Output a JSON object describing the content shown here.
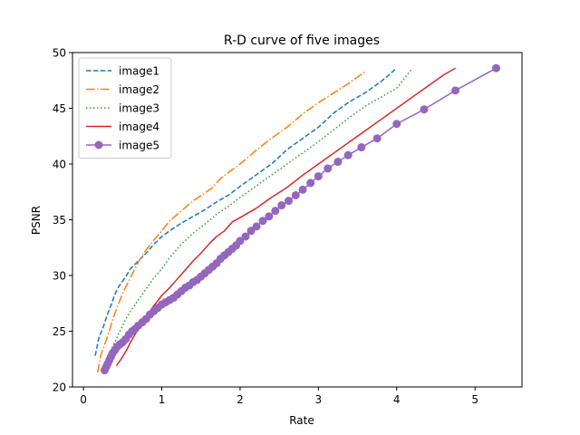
{
  "chart_data": {
    "type": "line",
    "title": "R-D curve of five images",
    "xlabel": "Rate",
    "ylabel": "PSNR",
    "xlim": [
      -0.14,
      5.6
    ],
    "ylim": [
      20,
      50
    ],
    "xticks": [
      0,
      1,
      2,
      3,
      4,
      5
    ],
    "yticks": [
      20,
      25,
      30,
      35,
      40,
      45,
      50
    ],
    "grid": false,
    "legend_position": "top-left",
    "series": [
      {
        "name": "image1",
        "color": "#1f77b4",
        "style": "dashed",
        "marker": "none",
        "points": [
          [
            0.15,
            22.8
          ],
          [
            0.2,
            24.5
          ],
          [
            0.25,
            25.3
          ],
          [
            0.3,
            26.4
          ],
          [
            0.35,
            27.3
          ],
          [
            0.4,
            28.3
          ],
          [
            0.45,
            29.0
          ],
          [
            0.5,
            29.5
          ],
          [
            0.55,
            30.0
          ],
          [
            0.6,
            30.6
          ],
          [
            0.7,
            31.3
          ],
          [
            0.8,
            32.0
          ],
          [
            0.9,
            32.8
          ],
          [
            1.0,
            33.5
          ],
          [
            1.1,
            34.0
          ],
          [
            1.25,
            34.7
          ],
          [
            1.4,
            35.3
          ],
          [
            1.55,
            35.9
          ],
          [
            1.7,
            36.6
          ],
          [
            1.85,
            37.2
          ],
          [
            2.0,
            38.0
          ],
          [
            2.2,
            39.0
          ],
          [
            2.4,
            40.0
          ],
          [
            2.6,
            41.3
          ],
          [
            2.8,
            42.3
          ],
          [
            3.0,
            43.3
          ],
          [
            3.2,
            44.6
          ],
          [
            3.4,
            45.6
          ],
          [
            3.6,
            46.4
          ],
          [
            3.8,
            47.4
          ],
          [
            4.0,
            48.6
          ]
        ]
      },
      {
        "name": "image2",
        "color": "#ff7f0e",
        "style": "dashdot",
        "marker": "none",
        "points": [
          [
            0.18,
            21.3
          ],
          [
            0.22,
            22.8
          ],
          [
            0.27,
            23.8
          ],
          [
            0.32,
            24.8
          ],
          [
            0.38,
            26.2
          ],
          [
            0.45,
            27.5
          ],
          [
            0.5,
            28.4
          ],
          [
            0.6,
            29.8
          ],
          [
            0.7,
            31.2
          ],
          [
            0.8,
            32.3
          ],
          [
            0.9,
            33.2
          ],
          [
            1.0,
            34.0
          ],
          [
            1.1,
            34.9
          ],
          [
            1.25,
            35.8
          ],
          [
            1.4,
            36.7
          ],
          [
            1.55,
            37.4
          ],
          [
            1.65,
            37.9
          ],
          [
            1.75,
            38.7
          ],
          [
            1.9,
            39.5
          ],
          [
            2.0,
            40.0
          ],
          [
            2.2,
            41.2
          ],
          [
            2.4,
            42.3
          ],
          [
            2.6,
            43.3
          ],
          [
            2.8,
            44.5
          ],
          [
            3.0,
            45.5
          ],
          [
            3.2,
            46.4
          ],
          [
            3.4,
            47.3
          ],
          [
            3.6,
            48.3
          ]
        ]
      },
      {
        "name": "image3",
        "color": "#2ca02c",
        "style": "dotted",
        "marker": "none",
        "points": [
          [
            0.3,
            22.3
          ],
          [
            0.35,
            23.3
          ],
          [
            0.4,
            24.0
          ],
          [
            0.45,
            24.8
          ],
          [
            0.5,
            25.5
          ],
          [
            0.55,
            26.2
          ],
          [
            0.6,
            26.8
          ],
          [
            0.7,
            27.8
          ],
          [
            0.8,
            28.8
          ],
          [
            0.9,
            29.8
          ],
          [
            1.0,
            30.6
          ],
          [
            1.1,
            31.6
          ],
          [
            1.25,
            32.8
          ],
          [
            1.4,
            33.8
          ],
          [
            1.55,
            34.6
          ],
          [
            1.7,
            35.5
          ],
          [
            1.85,
            36.2
          ],
          [
            2.0,
            37.0
          ],
          [
            2.2,
            38.0
          ],
          [
            2.4,
            39.0
          ],
          [
            2.6,
            40.0
          ],
          [
            2.8,
            41.0
          ],
          [
            3.0,
            42.0
          ],
          [
            3.2,
            43.1
          ],
          [
            3.4,
            44.2
          ],
          [
            3.6,
            45.2
          ],
          [
            3.8,
            46.0
          ],
          [
            4.0,
            46.8
          ],
          [
            4.2,
            48.6
          ]
        ]
      },
      {
        "name": "image4",
        "color": "#d62728",
        "style": "solid",
        "marker": "none",
        "points": [
          [
            0.42,
            21.9
          ],
          [
            0.48,
            22.5
          ],
          [
            0.55,
            23.3
          ],
          [
            0.6,
            24.0
          ],
          [
            0.7,
            25.2
          ],
          [
            0.8,
            26.3
          ],
          [
            0.9,
            27.3
          ],
          [
            1.0,
            28.2
          ],
          [
            1.1,
            28.9
          ],
          [
            1.2,
            29.7
          ],
          [
            1.3,
            30.5
          ],
          [
            1.4,
            31.3
          ],
          [
            1.5,
            32.0
          ],
          [
            1.6,
            32.8
          ],
          [
            1.7,
            33.5
          ],
          [
            1.8,
            34.0
          ],
          [
            1.9,
            34.8
          ],
          [
            2.0,
            35.2
          ],
          [
            2.2,
            36.0
          ],
          [
            2.4,
            37.0
          ],
          [
            2.6,
            37.9
          ],
          [
            2.8,
            39.0
          ],
          [
            3.0,
            40.0
          ],
          [
            3.2,
            41.0
          ],
          [
            3.4,
            42.0
          ],
          [
            3.6,
            43.0
          ],
          [
            3.8,
            44.0
          ],
          [
            4.0,
            45.0
          ],
          [
            4.2,
            46.0
          ],
          [
            4.4,
            47.0
          ],
          [
            4.6,
            48.0
          ],
          [
            4.75,
            48.6
          ]
        ]
      },
      {
        "name": "image5",
        "color": "#9467bd",
        "style": "solid",
        "marker": "circle",
        "points": [
          [
            0.27,
            21.5
          ],
          [
            0.29,
            21.8
          ],
          [
            0.31,
            22.1
          ],
          [
            0.33,
            22.4
          ],
          [
            0.35,
            22.7
          ],
          [
            0.37,
            23.0
          ],
          [
            0.4,
            23.3
          ],
          [
            0.43,
            23.6
          ],
          [
            0.46,
            23.8
          ],
          [
            0.5,
            24.0
          ],
          [
            0.54,
            24.3
          ],
          [
            0.58,
            24.7
          ],
          [
            0.62,
            25.0
          ],
          [
            0.66,
            25.2
          ],
          [
            0.7,
            25.5
          ],
          [
            0.75,
            25.8
          ],
          [
            0.8,
            26.1
          ],
          [
            0.85,
            26.5
          ],
          [
            0.9,
            26.8
          ],
          [
            0.95,
            27.1
          ],
          [
            1.0,
            27.4
          ],
          [
            1.05,
            27.6
          ],
          [
            1.1,
            27.8
          ],
          [
            1.15,
            28.0
          ],
          [
            1.2,
            28.3
          ],
          [
            1.25,
            28.6
          ],
          [
            1.3,
            28.9
          ],
          [
            1.35,
            29.1
          ],
          [
            1.4,
            29.4
          ],
          [
            1.45,
            29.6
          ],
          [
            1.5,
            29.9
          ],
          [
            1.55,
            30.2
          ],
          [
            1.6,
            30.5
          ],
          [
            1.65,
            30.8
          ],
          [
            1.7,
            31.1
          ],
          [
            1.75,
            31.5
          ],
          [
            1.8,
            31.8
          ],
          [
            1.85,
            32.1
          ],
          [
            1.9,
            32.4
          ],
          [
            1.95,
            32.7
          ],
          [
            2.0,
            33.1
          ],
          [
            2.07,
            33.5
          ],
          [
            2.14,
            34.0
          ],
          [
            2.21,
            34.4
          ],
          [
            2.29,
            34.9
          ],
          [
            2.37,
            35.3
          ],
          [
            2.45,
            35.8
          ],
          [
            2.53,
            36.3
          ],
          [
            2.62,
            36.7
          ],
          [
            2.71,
            37.2
          ],
          [
            2.8,
            37.7
          ],
          [
            2.9,
            38.3
          ],
          [
            3.0,
            38.9
          ],
          [
            3.12,
            39.6
          ],
          [
            3.25,
            40.2
          ],
          [
            3.38,
            40.8
          ],
          [
            3.55,
            41.5
          ],
          [
            3.75,
            42.3
          ],
          [
            4.0,
            43.6
          ],
          [
            4.35,
            44.9
          ],
          [
            4.75,
            46.6
          ],
          [
            5.27,
            48.6
          ]
        ]
      }
    ]
  }
}
